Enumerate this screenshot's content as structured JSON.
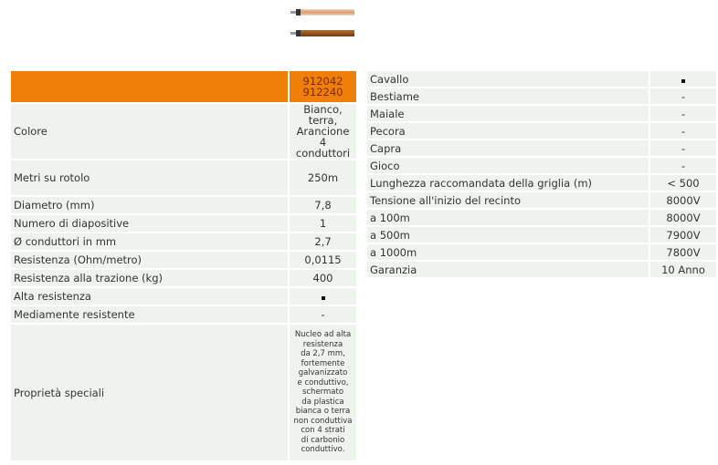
{
  "cables": [
    {
      "color": "#e8a06a",
      "name": "white-cable"
    },
    {
      "color": "#9a5a22",
      "name": "brown-cable"
    }
  ],
  "left": {
    "header": "912042\n912240",
    "rows": [
      {
        "label": "Colore",
        "value": "Bianco, terra,\nArancione\n4 conduttori"
      },
      {
        "label": "Metri su rotolo",
        "value": "250m"
      },
      {
        "label": "Diametro (mm)",
        "value": "7,8"
      },
      {
        "label": "Numero di diapositive",
        "value": "1"
      },
      {
        "label": "Ø conduttori in mm",
        "value": "2,7"
      },
      {
        "label": "Resistenza (Ohm/metro)",
        "value": "0,0115"
      },
      {
        "label": "Resistenza alla trazione (kg)",
        "value": "400"
      },
      {
        "label": "Alta resistenza",
        "value": "■"
      },
      {
        "label": "Mediamente resistente",
        "value": "-"
      },
      {
        "label": "Proprietà speciali",
        "value": "Nucleo ad alta\nresistenza\nda 2,7 mm,\nfortemente\ngalvanizzato\ne conduttivo,\nschermato\nda plastica\nbianca o terra\nnon conduttiva\ncon 4 strati\ndi carbonio\nconduttivo."
      }
    ]
  },
  "right": {
    "rows": [
      {
        "label": "Cavallo",
        "value": "■"
      },
      {
        "label": "Bestiame",
        "value": "-"
      },
      {
        "label": "Maiale",
        "value": "-"
      },
      {
        "label": "Pecora",
        "value": "-"
      },
      {
        "label": "Capra",
        "value": "-"
      },
      {
        "label": "Gioco",
        "value": "-"
      },
      {
        "label": "Lunghezza raccomandata della griglia (m)",
        "value": "< 500"
      },
      {
        "label": "Tensione all'inizio del recinto",
        "value": "8000V"
      },
      {
        "label": "a 100m",
        "value": "8000V"
      },
      {
        "label": "a 500m",
        "value": "7900V"
      },
      {
        "label": "a 1000m",
        "value": "7800V"
      },
      {
        "label": "Garanzia",
        "value": "10 Anno"
      }
    ]
  }
}
